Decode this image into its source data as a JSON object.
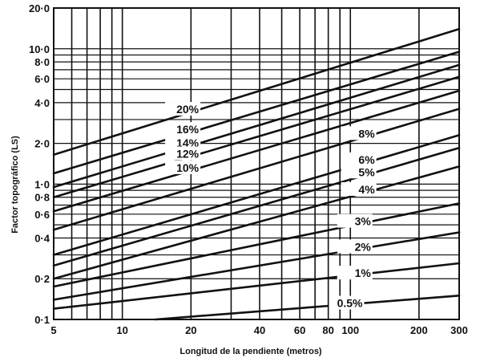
{
  "chart_data": {
    "type": "line",
    "title": "",
    "xlabel": "Longitud de la pendiente (metros)",
    "ylabel": "Factor topográfico (LS)",
    "xscale": "log",
    "yscale": "log",
    "xlim": [
      5,
      300
    ],
    "ylim": [
      0.1,
      20
    ],
    "grid": true,
    "x_ticks": [
      {
        "value": 5,
        "label": "5"
      },
      {
        "value": 10,
        "label": "10"
      },
      {
        "value": 20,
        "label": "20"
      },
      {
        "value": 40,
        "label": "40"
      },
      {
        "value": 60,
        "label": "60"
      },
      {
        "value": 80,
        "label": "80"
      },
      {
        "value": 100,
        "label": "100"
      },
      {
        "value": 200,
        "label": "200"
      },
      {
        "value": 300,
        "label": "300"
      }
    ],
    "y_ticks": [
      {
        "value": 0.1,
        "label": "0·1"
      },
      {
        "value": 0.2,
        "label": "0·2"
      },
      {
        "value": 0.4,
        "label": "0·4"
      },
      {
        "value": 0.6,
        "label": "0·6"
      },
      {
        "value": 0.8,
        "label": "0·8"
      },
      {
        "value": 1.0,
        "label": "1·0"
      },
      {
        "value": 2.0,
        "label": "2·0"
      },
      {
        "value": 4.0,
        "label": "4·0"
      },
      {
        "value": 6.0,
        "label": "6·0"
      },
      {
        "value": 8.0,
        "label": "8·0"
      },
      {
        "value": 10.0,
        "label": "10·0"
      },
      {
        "value": 20.0,
        "label": "20·0"
      }
    ],
    "x_grid": [
      5,
      6,
      7,
      8,
      9,
      10,
      20,
      30,
      40,
      50,
      60,
      70,
      80,
      90,
      100,
      200,
      300
    ],
    "y_grid": [
      0.1,
      0.2,
      0.3,
      0.4,
      0.5,
      0.6,
      0.7,
      0.8,
      0.9,
      1,
      2,
      3,
      4,
      5,
      6,
      7,
      8,
      9,
      10,
      20
    ],
    "series": [
      {
        "name": "20%",
        "x": [
          5,
          300
        ],
        "y": [
          1.65,
          14.0
        ]
      },
      {
        "name": "16%",
        "x": [
          5,
          300
        ],
        "y": [
          1.2,
          9.5
        ]
      },
      {
        "name": "14%",
        "x": [
          5,
          300
        ],
        "y": [
          0.95,
          7.6
        ]
      },
      {
        "name": "12%",
        "x": [
          5,
          300
        ],
        "y": [
          0.8,
          6.2
        ]
      },
      {
        "name": "10%",
        "x": [
          5,
          300
        ],
        "y": [
          0.63,
          4.9
        ]
      },
      {
        "name": "8%",
        "x": [
          5,
          300
        ],
        "y": [
          0.46,
          3.6
        ]
      },
      {
        "name": "6%",
        "x": [
          5,
          300
        ],
        "y": [
          0.3,
          2.3
        ]
      },
      {
        "name": "5%",
        "x": [
          5,
          300
        ],
        "y": [
          0.25,
          1.85
        ]
      },
      {
        "name": "4%",
        "x": [
          5,
          300
        ],
        "y": [
          0.2,
          1.35
        ]
      },
      {
        "name": "3%",
        "x": [
          5,
          300
        ],
        "y": [
          0.175,
          0.72
        ]
      },
      {
        "name": "2%",
        "x": [
          5,
          300
        ],
        "y": [
          0.14,
          0.44
        ]
      },
      {
        "name": "1%",
        "x": [
          5,
          300
        ],
        "y": [
          0.12,
          0.26
        ]
      },
      {
        "name": "0.5%",
        "x": [
          14,
          300
        ],
        "y": [
          0.1,
          0.15
        ]
      }
    ],
    "curve_labels": [
      {
        "series": "20%",
        "label": "20%",
        "at_x": 22,
        "side": "left"
      },
      {
        "series": "16%",
        "label": "16%",
        "at_x": 22,
        "side": "left"
      },
      {
        "series": "14%",
        "label": "14%",
        "at_x": 22,
        "side": "left"
      },
      {
        "series": "12%",
        "label": "12%",
        "at_x": 22,
        "side": "left"
      },
      {
        "series": "10%",
        "label": "10%",
        "at_x": 22,
        "side": "left"
      },
      {
        "series": "8%",
        "label": "8%",
        "at_x": 130,
        "side": "left"
      },
      {
        "series": "6%",
        "label": "6%",
        "at_x": 130,
        "side": "left"
      },
      {
        "series": "5%",
        "label": "5%",
        "at_x": 130,
        "side": "left"
      },
      {
        "series": "4%",
        "label": "4%",
        "at_x": 130,
        "side": "left"
      },
      {
        "series": "3%",
        "label": "3%",
        "at_x": 125,
        "side": "left"
      },
      {
        "series": "2%",
        "label": "2%",
        "at_x": 125,
        "side": "left"
      },
      {
        "series": "1%",
        "label": "1%",
        "at_x": 125,
        "side": "left"
      },
      {
        "series": "0.5%",
        "label": "0.5%",
        "at_x": 115,
        "side": "left"
      }
    ]
  }
}
